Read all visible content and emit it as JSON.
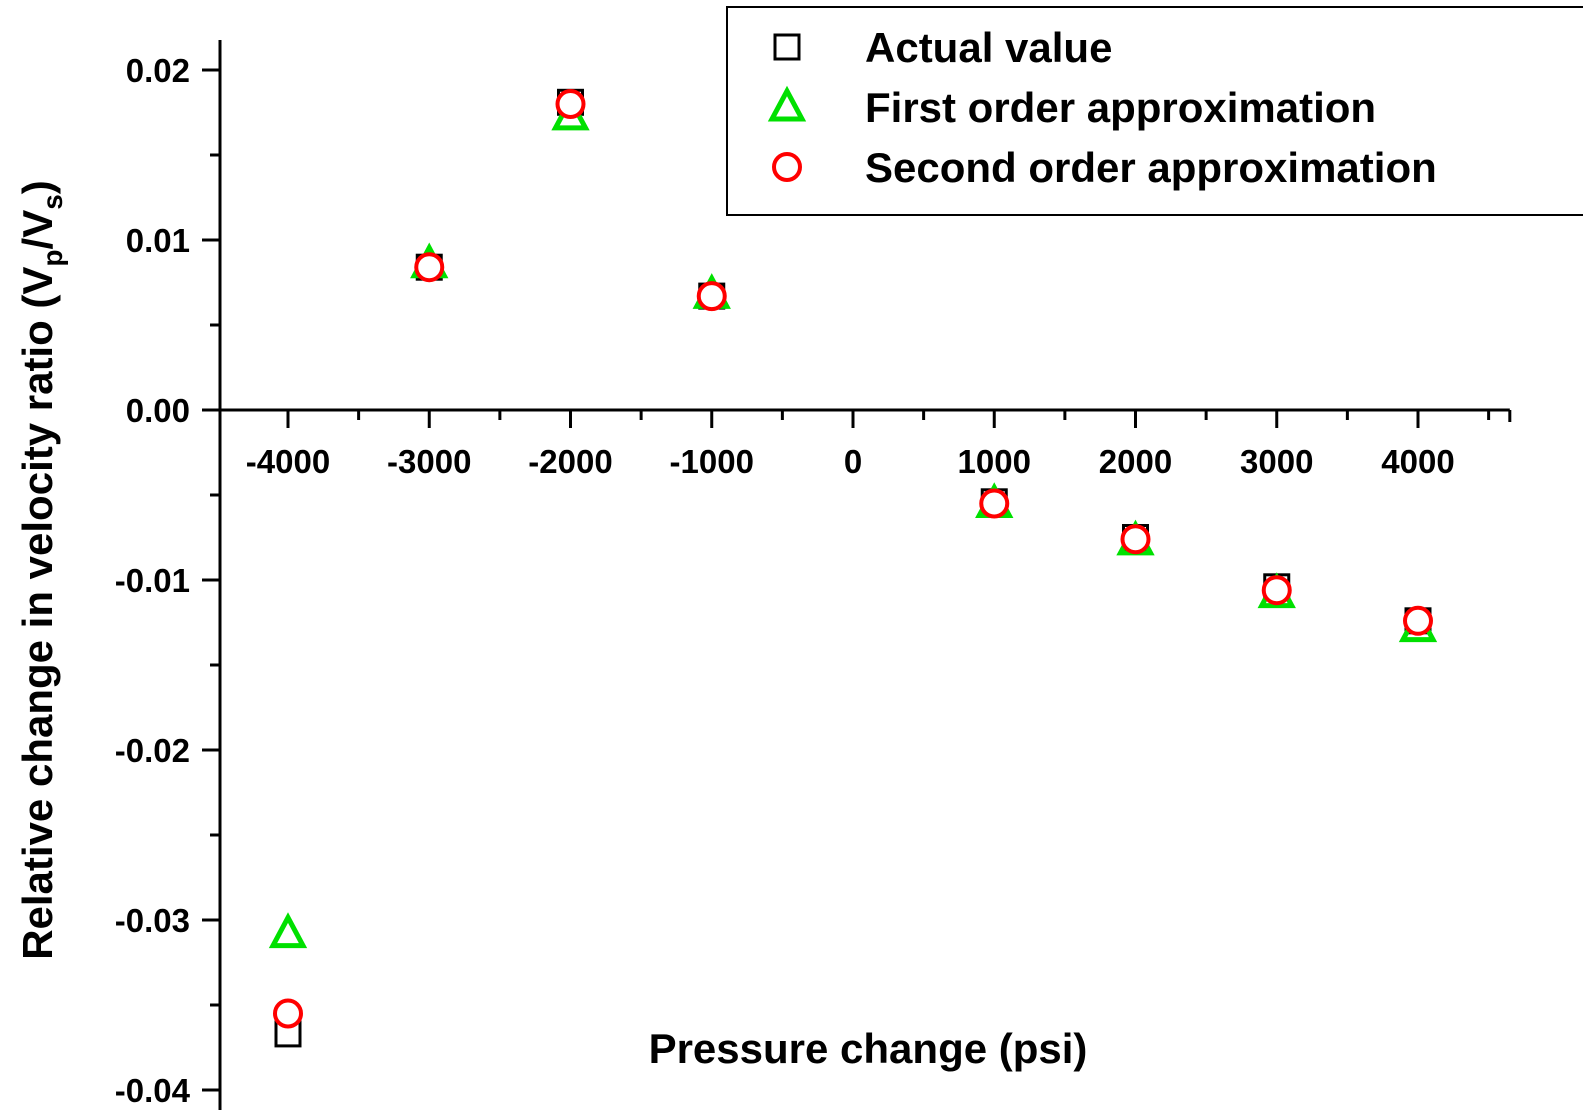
{
  "chart_data": {
    "type": "scatter",
    "title": "",
    "xlabel": "Pressure change (psi)",
    "ylabel": {
      "main": "Relative change in velocity ratio (V",
      "sub_p": "p",
      "slash": "/V",
      "sub_s": "s",
      "close": ")"
    },
    "xlim": [
      -4650,
      4650
    ],
    "ylim": [
      -0.04,
      0.02
    ],
    "x_ticks": [
      -4000,
      -3000,
      -2000,
      -1000,
      0,
      1000,
      2000,
      3000,
      4000
    ],
    "x_tick_labels": [
      "-4000",
      "-3000",
      "-2000",
      "-1000",
      "0",
      "1000",
      "2000",
      "3000",
      "4000"
    ],
    "y_ticks": [
      0.02,
      0.01,
      0.0,
      -0.01,
      -0.02,
      -0.03,
      -0.04
    ],
    "y_tick_labels": [
      "0.02",
      "0.01",
      "0.00",
      "-0.01",
      "-0.02",
      "-0.03",
      "-0.04"
    ],
    "grid": false,
    "legend_position": "top-right",
    "series": [
      {
        "name": "Actual value",
        "marker": "square",
        "color": "#000000",
        "x": [
          -4000,
          -3000,
          -2000,
          -1000,
          1000,
          2000,
          3000,
          4000
        ],
        "y": [
          -0.0367,
          0.0084,
          0.0181,
          0.0067,
          -0.0054,
          -0.0075,
          -0.0104,
          -0.0124
        ]
      },
      {
        "name": "First order approximation",
        "marker": "triangle",
        "color": "#00e000",
        "x": [
          -4000,
          -3000,
          -2000,
          -1000,
          1000,
          2000,
          3000,
          4000
        ],
        "y": [
          -0.0308,
          0.0086,
          0.0173,
          0.0068,
          -0.0055,
          -0.0077,
          -0.0108,
          -0.0128
        ]
      },
      {
        "name": "Second order approximation",
        "marker": "circle",
        "color": "#ff0000",
        "x": [
          -4000,
          -3000,
          -2000,
          -1000,
          1000,
          2000,
          3000,
          4000
        ],
        "y": [
          -0.0355,
          0.0084,
          0.018,
          0.0067,
          -0.0055,
          -0.0076,
          -0.0106,
          -0.0124
        ]
      }
    ]
  }
}
